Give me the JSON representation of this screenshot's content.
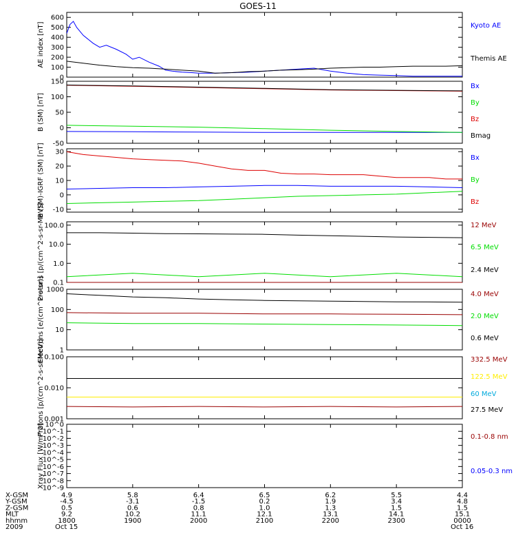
{
  "title": "GOES-11",
  "colors": {
    "black": "#000000",
    "blue": "#0000ff",
    "green": "#00dd00",
    "red": "#dd0000",
    "darkred": "#990000",
    "cyan": "#00aadd",
    "yellow": "#ffee00"
  },
  "time_axis": {
    "ticks": [
      "1800",
      "1900",
      "2000",
      "2100",
      "2200",
      "2300",
      "0000"
    ],
    "start_label": "Oct 15",
    "end_label": "Oct 16",
    "year": "2009",
    "rows": [
      {
        "label": "X-GSM",
        "values": [
          "4.9",
          "5.8",
          "6.4",
          "6.5",
          "6.2",
          "5.5",
          "4.4"
        ]
      },
      {
        "label": "Y-GSM",
        "values": [
          "-4.5",
          "-3.1",
          "-1.5",
          "0.2",
          "1.9",
          "3.4",
          "4.8"
        ]
      },
      {
        "label": "Z-GSM",
        "values": [
          "0.5",
          "0.6",
          "0.8",
          "1.0",
          "1.3",
          "1.5",
          "1.5"
        ]
      },
      {
        "label": "MLT",
        "values": [
          "9.2",
          "10.2",
          "11.1",
          "12.1",
          "13.1",
          "14.1",
          "15.1"
        ]
      },
      {
        "label": "hhmm",
        "values": [
          "1800",
          "1900",
          "2000",
          "2100",
          "2200",
          "2300",
          "0000"
        ]
      }
    ]
  },
  "chart_data": [
    {
      "type": "line",
      "ylabel": "AE index [nT]",
      "ylim": [
        0,
        650
      ],
      "log": false,
      "yticks": [
        "0",
        "100",
        "200",
        "300",
        "400",
        "500",
        "600"
      ],
      "ytick_values": [
        0,
        100,
        200,
        300,
        400,
        500,
        600
      ],
      "series": [
        {
          "name": "Kyoto AE",
          "color": "#0000ff",
          "x": [
            18.0,
            18.05,
            18.1,
            18.15,
            18.25,
            18.4,
            18.5,
            18.6,
            18.75,
            18.9,
            19.0,
            19.1,
            19.25,
            19.4,
            19.5,
            19.6,
            19.75,
            19.9,
            20.0,
            20.25,
            20.5,
            20.75,
            21.0,
            21.25,
            21.5,
            21.75,
            22.0,
            22.25,
            22.5,
            22.75,
            23.0,
            23.25,
            23.5,
            23.75,
            24.0
          ],
          "values": [
            440,
            530,
            560,
            500,
            420,
            340,
            300,
            320,
            280,
            230,
            180,
            200,
            150,
            110,
            70,
            60,
            50,
            45,
            40,
            40,
            45,
            50,
            60,
            70,
            80,
            90,
            60,
            40,
            25,
            20,
            15,
            10,
            10,
            10,
            10
          ]
        },
        {
          "name": "Themis AE",
          "color": "#000000",
          "x": [
            18.0,
            18.25,
            18.5,
            18.75,
            19.0,
            19.25,
            19.5,
            19.75,
            20.0,
            20.25,
            20.5,
            20.75,
            21.0,
            21.25,
            21.5,
            21.75,
            22.0,
            22.25,
            22.5,
            22.75,
            23.0,
            23.25,
            23.5,
            23.75,
            24.0
          ],
          "values": [
            160,
            140,
            120,
            105,
            95,
            90,
            80,
            70,
            60,
            40,
            45,
            55,
            60,
            70,
            75,
            80,
            90,
            95,
            100,
            100,
            105,
            110,
            110,
            110,
            115
          ]
        }
      ]
    },
    {
      "type": "line",
      "ylabel": "B (SM) [nT]",
      "ylim": [
        -50,
        150
      ],
      "log": false,
      "yticks": [
        "-50",
        "0",
        "50",
        "100",
        "150"
      ],
      "ytick_values": [
        -50,
        0,
        50,
        100,
        150
      ],
      "series": [
        {
          "name": "Bx",
          "color": "#0000ff",
          "x": [
            18.0,
            19.0,
            20.0,
            21.0,
            22.0,
            23.0,
            24.0
          ],
          "values": [
            -12,
            -13,
            -14,
            -15,
            -15,
            -15,
            -15
          ]
        },
        {
          "name": "By",
          "color": "#00dd00",
          "x": [
            18.0,
            19.0,
            20.0,
            21.0,
            22.0,
            23.0,
            24.0
          ],
          "values": [
            8,
            5,
            2,
            -3,
            -8,
            -12,
            -15
          ]
        },
        {
          "name": "Bz",
          "color": "#dd0000",
          "x": [
            18.0,
            19.0,
            20.0,
            21.0,
            22.0,
            23.0,
            24.0
          ],
          "values": [
            137,
            134,
            130,
            126,
            122,
            120,
            118
          ]
        },
        {
          "name": "Bmag",
          "color": "#000000",
          "x": [
            18.0,
            19.0,
            20.0,
            21.0,
            22.0,
            23.0,
            24.0
          ],
          "values": [
            138,
            135,
            131,
            127,
            123,
            121,
            119
          ]
        }
      ]
    },
    {
      "type": "line",
      "ylabel": "B (SM)-IGRF (SM) [nT]",
      "ylim": [
        -12,
        32
      ],
      "log": false,
      "yticks": [
        "-10",
        "0",
        "10",
        "20",
        "30"
      ],
      "ytick_values": [
        -10,
        0,
        10,
        20,
        30
      ],
      "series": [
        {
          "name": "Bx",
          "color": "#0000ff",
          "x": [
            18.0,
            18.5,
            19.0,
            19.5,
            20.0,
            20.5,
            21.0,
            21.5,
            22.0,
            22.5,
            23.0,
            23.5,
            24.0
          ],
          "values": [
            4,
            4.5,
            5,
            5,
            5.5,
            6,
            6.5,
            6.5,
            6,
            6,
            6,
            5.5,
            5
          ]
        },
        {
          "name": "By",
          "color": "#00dd00",
          "x": [
            18.0,
            18.5,
            19.0,
            19.5,
            20.0,
            20.5,
            21.0,
            21.5,
            22.0,
            22.5,
            23.0,
            23.5,
            24.0
          ],
          "values": [
            -6,
            -5.5,
            -5,
            -4.5,
            -4,
            -3,
            -2,
            -1,
            -0.5,
            0,
            0.5,
            1.5,
            2.5
          ]
        },
        {
          "name": "Bz",
          "color": "#dd0000",
          "x": [
            18.0,
            18.25,
            18.5,
            18.75,
            19.0,
            19.25,
            19.5,
            19.75,
            20.0,
            20.25,
            20.5,
            20.75,
            21.0,
            21.25,
            21.5,
            21.75,
            22.0,
            22.25,
            22.5,
            22.75,
            23.0,
            23.25,
            23.5,
            23.75,
            24.0
          ],
          "values": [
            30,
            28,
            27,
            26,
            25,
            24.5,
            24,
            23.5,
            22,
            20,
            18,
            17,
            17,
            15,
            14.5,
            14.5,
            14,
            14,
            14,
            13,
            12,
            12,
            12,
            11,
            11
          ]
        }
      ]
    },
    {
      "type": "line",
      "ylabel": "Protons [p/(cm^2-s-sr-MeV)]",
      "ylim": [
        0.1,
        150
      ],
      "log": true,
      "yticks": [
        "0.1",
        "1.0",
        "10.0",
        "100.0"
      ],
      "ytick_values": [
        0.1,
        1,
        10,
        100
      ],
      "series": [
        {
          "name": "12 MeV",
          "color": "#990000",
          "x": [
            18.0,
            19.0,
            20.0,
            21.0,
            22.0,
            23.0,
            24.0
          ],
          "values": [
            0.1,
            0.1,
            0.1,
            0.1,
            0.1,
            0.1,
            0.1
          ]
        },
        {
          "name": "6.5 MeV",
          "color": "#00dd00",
          "x": [
            18.0,
            19.0,
            20.0,
            21.0,
            22.0,
            23.0,
            24.0
          ],
          "values": [
            0.2,
            0.3,
            0.2,
            0.3,
            0.2,
            0.3,
            0.2
          ]
        },
        {
          "name": "2.4 MeV",
          "color": "#000000",
          "x": [
            18.0,
            18.5,
            19.0,
            19.5,
            20.0,
            20.5,
            21.0,
            21.5,
            22.0,
            22.5,
            23.0,
            23.5,
            24.0
          ],
          "values": [
            40,
            40,
            38,
            36,
            35,
            34,
            33,
            30,
            28,
            26,
            24,
            23,
            22
          ]
        }
      ]
    },
    {
      "type": "line",
      "ylabel": "Electrons [e/(cm^2-s-sr)]",
      "ylim": [
        1,
        1000
      ],
      "log": true,
      "yticks": [
        "1",
        "10",
        "100",
        "1000"
      ],
      "ytick_values": [
        1,
        10,
        100,
        1000
      ],
      "series": [
        {
          "name": "4.0 MeV",
          "color": "#990000",
          "x": [
            18.0,
            19.0,
            20.0,
            21.0,
            22.0,
            23.0,
            24.0
          ],
          "values": [
            70,
            65,
            65,
            60,
            60,
            58,
            55
          ]
        },
        {
          "name": "2.0 MeV",
          "color": "#00dd00",
          "x": [
            18.0,
            19.0,
            20.0,
            21.0,
            22.0,
            23.0,
            24.0
          ],
          "values": [
            22,
            20,
            20,
            19,
            18,
            17,
            16
          ]
        },
        {
          "name": "0.6 MeV",
          "color": "#000000",
          "x": [
            18.0,
            18.5,
            19.0,
            19.5,
            20.0,
            20.5,
            21.0,
            21.5,
            22.0,
            22.5,
            23.0,
            23.5,
            24.0
          ],
          "values": [
            600,
            500,
            420,
            380,
            330,
            300,
            280,
            270,
            260,
            250,
            240,
            235,
            230
          ]
        }
      ]
    },
    {
      "type": "line",
      "ylabel": "Protons [p/(cm^2-s-sr-MeV)]",
      "ylim": [
        0.001,
        0.1
      ],
      "log": true,
      "yticks": [
        "0.001",
        "0.010",
        "0.100"
      ],
      "ytick_values": [
        0.001,
        0.01,
        0.1
      ],
      "series": [
        {
          "name": "332.5 MeV",
          "color": "#990000",
          "x": [
            18.0,
            19.0,
            20.0,
            21.0,
            22.0,
            23.0,
            24.0
          ],
          "values": [
            0.0025,
            0.0024,
            0.0025,
            0.0024,
            0.0025,
            0.0024,
            0.0025
          ]
        },
        {
          "name": "122.5 MeV",
          "color": "#ffee00",
          "x": [
            18.0,
            19.0,
            20.0,
            21.0,
            22.0,
            23.0,
            24.0
          ],
          "values": [
            0.005,
            0.005,
            0.005,
            0.005,
            0.005,
            0.005,
            0.005
          ]
        },
        {
          "name": "60 MeV",
          "color": "#00aadd",
          "x": [
            18.0,
            19.0,
            20.0,
            21.0,
            22.0,
            23.0,
            24.0
          ],
          "values": [
            0.02,
            0.02,
            0.02,
            0.02,
            0.02,
            0.02,
            0.02
          ]
        },
        {
          "name": "27.5 MeV",
          "color": "#000000",
          "x": [
            18.0,
            19.0,
            20.0,
            21.0,
            22.0,
            23.0,
            24.0
          ],
          "values": [
            0.02,
            0.02,
            0.02,
            0.02,
            0.02,
            0.02,
            0.02
          ]
        }
      ]
    },
    {
      "type": "line",
      "ylabel": "Xray Flux [W/m^2]",
      "ylim": [
        1e-09,
        1
      ],
      "log": true,
      "yticks": [
        "10^-9",
        "10^-8",
        "10^-7",
        "10^-6",
        "10^-5",
        "10^-4",
        "10^-3",
        "10^-2",
        "10^-1",
        "10^0"
      ],
      "ytick_values": [
        1e-09,
        1e-08,
        1e-07,
        1e-06,
        1e-05,
        0.0001,
        0.001,
        0.01,
        0.1,
        1
      ],
      "series": [
        {
          "name": "0.1-0.8 nm",
          "color": "#990000",
          "x": [],
          "values": []
        },
        {
          "name": "0.05-0.3 nm",
          "color": "#0000ff",
          "x": [],
          "values": []
        }
      ]
    }
  ]
}
